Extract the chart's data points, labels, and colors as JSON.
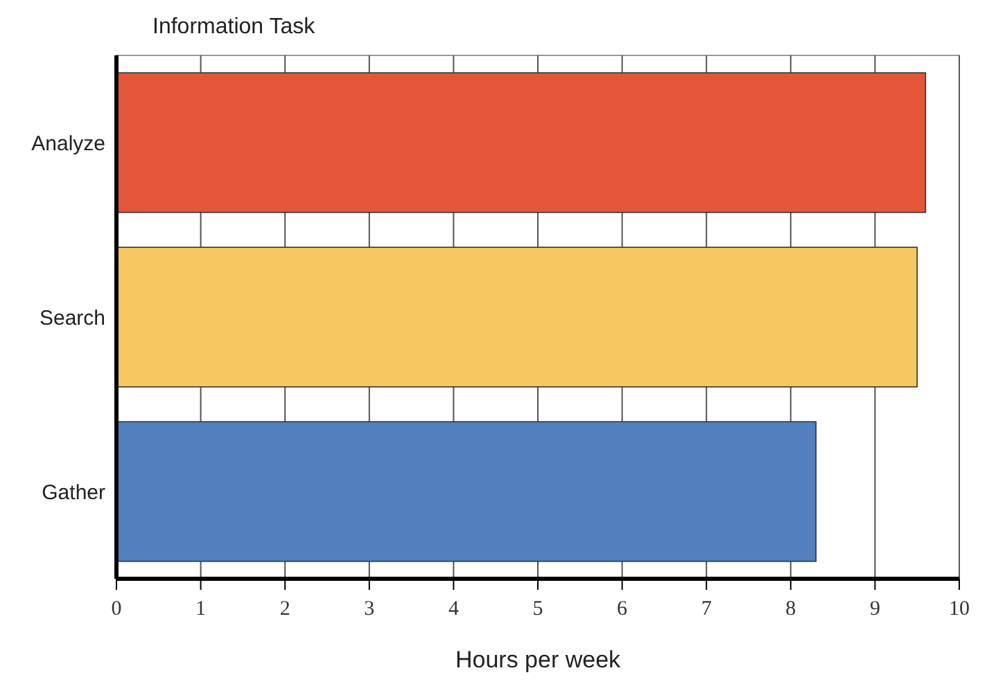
{
  "chart_data": {
    "type": "bar",
    "orientation": "horizontal",
    "ylabel": "Information Task",
    "xlabel": "Hours per week",
    "categories": [
      "Analyze",
      "Search",
      "Gather"
    ],
    "values": [
      9.6,
      9.5,
      8.3
    ],
    "colors": [
      "#e4553a",
      "#f5c862",
      "#527fbd"
    ],
    "xlim": [
      0,
      10
    ],
    "xticks": [
      0,
      1,
      2,
      3,
      4,
      5,
      6,
      7,
      8,
      9,
      10
    ],
    "grid": "x"
  }
}
